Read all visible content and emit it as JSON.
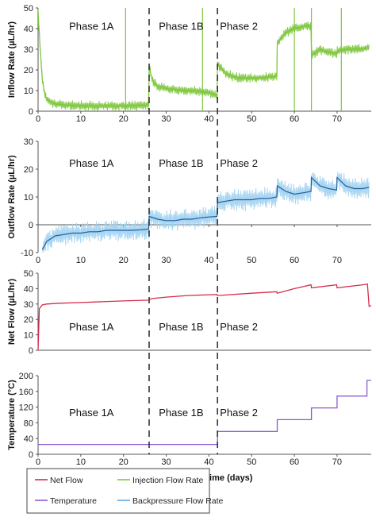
{
  "chart_data": [
    {
      "type": "line",
      "ylabel": "Inflow Rate (µL/hr)",
      "ylim": [
        0,
        50
      ],
      "yticks": [
        0,
        10,
        20,
        30,
        40,
        50
      ],
      "xlim": [
        0,
        78
      ],
      "xticks": [
        0,
        10,
        20,
        30,
        40,
        50,
        60,
        70
      ],
      "phase_labels": [
        {
          "text": "Phase 1A",
          "x": 12.5,
          "y": 41
        },
        {
          "text": "Phase 1B",
          "x": 33.5,
          "y": 41
        },
        {
          "text": "Phase 2",
          "x": 47,
          "y": 41
        }
      ],
      "series": [
        {
          "color": "#7ec63c",
          "x": [
            0,
            0.5,
            1,
            1.5,
            2,
            3,
            4,
            6,
            8,
            10,
            12,
            14,
            16,
            18,
            20,
            22,
            24,
            25.9,
            26,
            26.5,
            27,
            28,
            30,
            32,
            34,
            36,
            38,
            40,
            41,
            41.9,
            42,
            44,
            46,
            48,
            50,
            52,
            54,
            55.9,
            56,
            58,
            60,
            62,
            63.9,
            64,
            66,
            68,
            69.9,
            70,
            72,
            74,
            76,
            77.5
          ],
          "y": [
            48,
            30,
            15,
            9,
            6,
            4.5,
            3.5,
            3,
            2.8,
            2.7,
            2.6,
            2.6,
            2.6,
            2.6,
            2.6,
            2.7,
            2.8,
            3,
            22,
            17,
            14,
            12,
            11,
            10.5,
            10,
            10,
            9.5,
            9,
            8.5,
            7,
            23,
            18,
            16.5,
            16,
            16,
            16.2,
            16.5,
            17,
            33,
            38,
            40,
            41,
            41.5,
            27,
            30,
            28.5,
            28,
            29,
            30,
            30,
            30,
            31
          ]
        }
      ],
      "spikes": [
        20.5,
        38.5,
        60,
        64,
        71
      ],
      "noise": 2.2
    },
    {
      "type": "line",
      "ylabel": "Outflow Rate (µL/hr)",
      "ylim": [
        -10,
        30
      ],
      "yticks": [
        -10,
        0,
        10,
        20,
        30
      ],
      "xlim": [
        0,
        78
      ],
      "xticks": [
        0,
        10,
        20,
        30,
        40,
        50,
        60,
        70
      ],
      "phase_labels": [
        {
          "text": "Phase 1A",
          "x": 12.5,
          "y": 22
        },
        {
          "text": "Phase 1B",
          "x": 33.5,
          "y": 22
        },
        {
          "text": "Phase 2",
          "x": 47,
          "y": 22
        }
      ],
      "series": [
        {
          "color": "#1f5f9f",
          "x": [
            1,
            2,
            4,
            6,
            8,
            10,
            12,
            14,
            16,
            18,
            20,
            22,
            24,
            25.9,
            26,
            28,
            30,
            32,
            34,
            36,
            38,
            40,
            41.9,
            42,
            44,
            46,
            48,
            50,
            52,
            54,
            55.9,
            56,
            58,
            60,
            62,
            63.9,
            64,
            66,
            68,
            69.9,
            70,
            72,
            74,
            76,
            77.5
          ],
          "y": [
            -9,
            -6,
            -4,
            -3.5,
            -3,
            -3,
            -2.5,
            -2.5,
            -2,
            -2,
            -2,
            -2,
            -1.8,
            -1.5,
            3,
            2,
            1.5,
            1.5,
            2,
            2,
            2.5,
            2.8,
            3,
            8,
            8.5,
            9,
            9,
            9,
            9.5,
            9.5,
            10,
            14,
            12,
            11,
            11.5,
            12,
            17,
            14,
            13,
            12.5,
            17,
            14,
            13,
            13,
            13.5
          ]
        }
      ],
      "band_color": "#9fd0f0",
      "noise": 3.5
    },
    {
      "type": "line",
      "ylabel": "Net Flow (µL/hr)",
      "ylim": [
        0,
        50
      ],
      "yticks": [
        0,
        10,
        20,
        30,
        40,
        50
      ],
      "xlim": [
        0,
        78
      ],
      "phase_labels": [
        {
          "text": "Phase 1A",
          "x": 12.5,
          "y": 15
        },
        {
          "text": "Phase 1B",
          "x": 33.5,
          "y": 15
        },
        {
          "text": "Phase 2",
          "x": 47,
          "y": 15
        }
      ],
      "series": [
        {
          "name": "Net Flow",
          "color": "#d62c4a",
          "x": [
            0,
            0.3,
            1,
            2,
            5,
            10,
            15,
            20,
            25.9,
            26.5,
            30,
            35,
            41.9,
            42,
            50,
            55.9,
            56,
            60,
            63.9,
            64,
            69.9,
            70,
            76,
            77.1,
            77.5,
            78
          ],
          "y": [
            0,
            27,
            29.5,
            30,
            30.5,
            31,
            31.5,
            32,
            32.5,
            33.5,
            34.5,
            35.5,
            36.2,
            35.5,
            37,
            38,
            37,
            40,
            42.5,
            40.5,
            42.5,
            40.5,
            42.5,
            43,
            28.5,
            29
          ]
        }
      ]
    },
    {
      "type": "line",
      "ylabel": "Temperature (°C)",
      "xlabel": "Time (days)",
      "ylim": [
        0,
        200
      ],
      "yticks": [
        0,
        40,
        80,
        120,
        160,
        200
      ],
      "xlim": [
        0,
        78
      ],
      "xticks": [
        0,
        10,
        20,
        30,
        40,
        50,
        60,
        70
      ],
      "phase_labels": [
        {
          "text": "Phase 1A",
          "x": 12.5,
          "y": 105
        },
        {
          "text": "Phase 1B",
          "x": 33.5,
          "y": 105
        },
        {
          "text": "Phase 2",
          "x": 47,
          "y": 105
        }
      ],
      "series": [
        {
          "name": "Temperature",
          "color": "#8a5bd0",
          "x": [
            0,
            42,
            42,
            56,
            56,
            64,
            64,
            70,
            70,
            77,
            77,
            78
          ],
          "y": [
            25,
            25,
            58,
            58,
            88,
            88,
            118,
            118,
            148,
            148,
            188,
            188
          ]
        }
      ]
    }
  ],
  "phase_boundaries": [
    26,
    42
  ],
  "legend": [
    {
      "label": "Net Flow",
      "color": "#d62c4a"
    },
    {
      "label": "Injection Flow Rate",
      "color": "#7ec63c"
    },
    {
      "label": "Temperature",
      "color": "#8a5bd0"
    },
    {
      "label": "Backpressure Flow Rate",
      "color": "#5aa9e6"
    }
  ]
}
